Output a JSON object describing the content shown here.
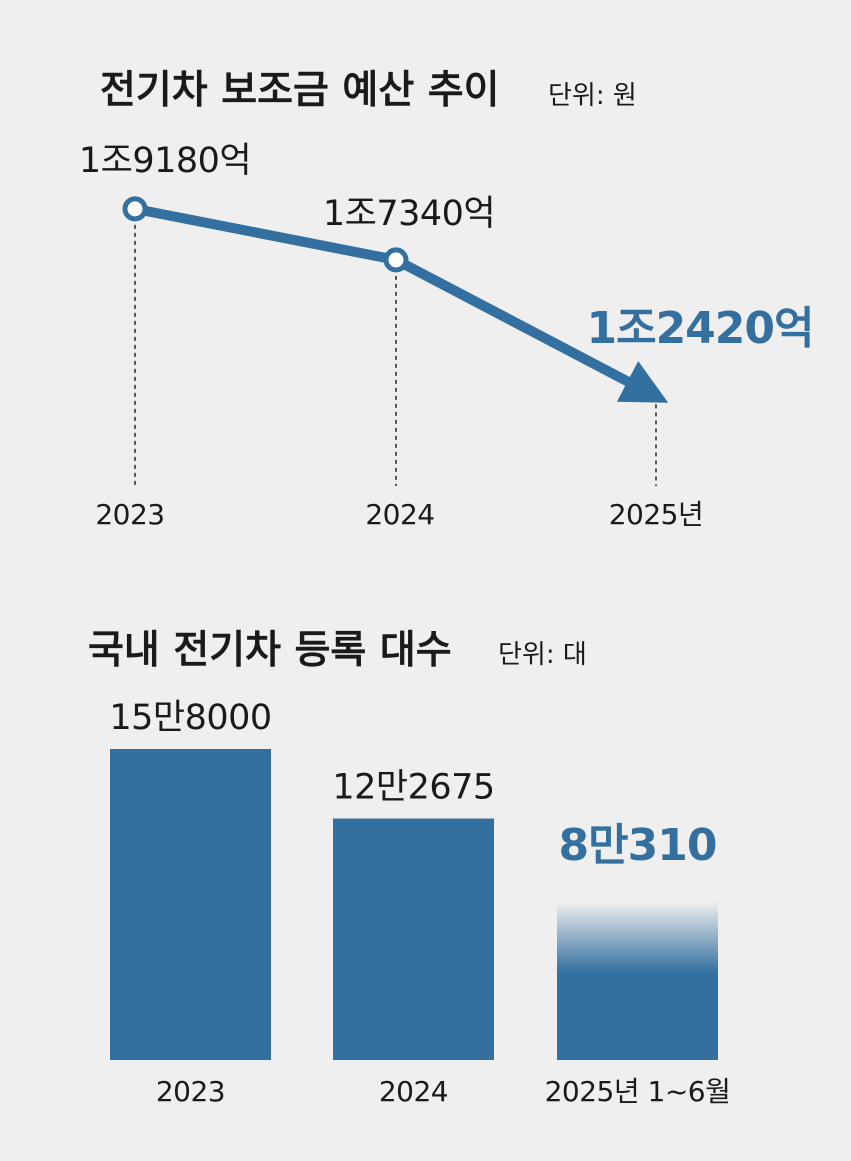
{
  "chart_data": [
    {
      "type": "line",
      "title": "전기차 보조금 예산 추이",
      "unit_note": "단위: 원",
      "categories": [
        "2023",
        "2024",
        "2025년"
      ],
      "values": [
        19180,
        17340,
        12420
      ],
      "value_unit": "억원",
      "data_labels": [
        "1조9180억",
        "1조7340억",
        "1조2420억"
      ],
      "highlight_index": 2,
      "colors": {
        "line": "#336f9f",
        "highlight_text": "#336f9f",
        "text": "#1a1a1a"
      }
    },
    {
      "type": "bar",
      "title": "국내 전기차 등록 대수",
      "unit_note": "단위: 대",
      "categories": [
        "2023",
        "2024",
        "2025년 1~6월"
      ],
      "values": [
        158000,
        122675,
        80310
      ],
      "data_labels": [
        "15만8000",
        "12만2675",
        "8만310"
      ],
      "highlight_index": 2,
      "colors": {
        "bar": "#336f9f",
        "highlight_text": "#336f9f",
        "text": "#1a1a1a"
      }
    }
  ]
}
